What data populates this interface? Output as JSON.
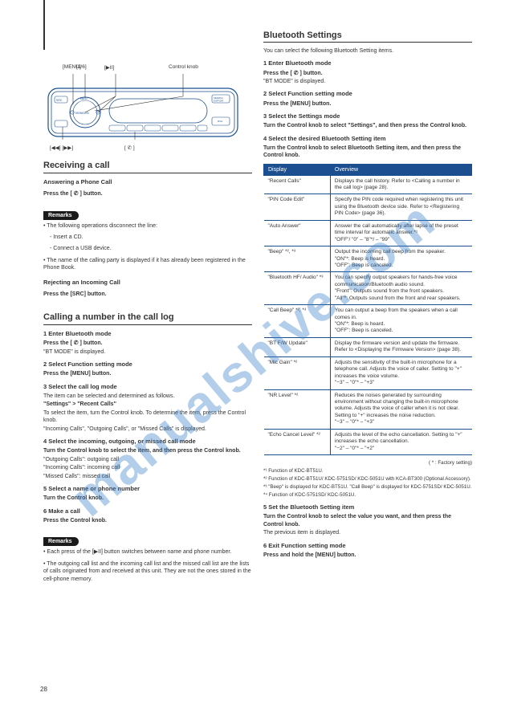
{
  "page_number": "28",
  "watermark_text": "manualshive.com",
  "callouts": {
    "c1": "[MENU]",
    "c2": "[1/6]",
    "c3": "[▶II]",
    "c4": "Control knob",
    "c5": "[◀◀] [▶▶]",
    "c6_a": "[ ",
    "c6_b": " ]",
    "phone_icon": "✆"
  },
  "radio": {
    "brand": "KENWOOD"
  },
  "left": {
    "section1_title": "Receiving a call",
    "section1_body": "Answering a Phone Call",
    "section1_press": "Press the [ ✆ ] button.",
    "section1_remarks_title": "Remarks",
    "section1_r1": "• The following operations disconnect the line:",
    "section1_r1a": "- Insert a CD.",
    "section1_r1b": "- Connect a USB device.",
    "section1_r2": "• The name of the calling party is displayed if it has already been registered in the Phone Book.",
    "section1_reject_title": "Rejecting an Incoming Call",
    "section1_reject_body": "Press the [SRC] button.",
    "section2_title": "Calling a number in the call log",
    "section2_s1": "1  Enter Bluetooth mode",
    "section2_s1_body": "Press the [ ✆ ] button.",
    "section2_s1_display": "\"BT MODE\" is displayed.",
    "section2_s2": "2  Select Function setting mode",
    "section2_s2_body": "Press the [MENU] button.",
    "section2_s3": "3  Select the call log mode",
    "section2_s3_body1": "The item can be selected and determined as follows.",
    "section2_s3_body2": "\"Settings\" > \"Recent Calls\"",
    "section2_s3_body3": "To select the item, turn the Control knob. To determine the item, press the Control knob.",
    "section2_s3_display": "\"Incoming Calls\", \"Outgoing Calls\", or \"Missed Calls\" is displayed.",
    "section2_s4": "4  Select the incoming, outgoing, or missed call mode",
    "section2_s4_body": "Turn the Control knob to select the item, and then press the Control knob.",
    "section2_s4_a": "\"Outgoing Calls\": outgoing call",
    "section2_s4_b": "\"Incoming Calls\": incoming call",
    "section2_s4_c": "\"Missed Calls\": missed call",
    "section2_s5": "5  Select a name or phone number",
    "section2_s5_body": "Turn the Control knob.",
    "section2_s6": "6  Make a call",
    "section2_s6_body": "Press the Control knob.",
    "section2_remarks_title": "Remarks",
    "section2_r1": "• Each press of the [▶II] button switches between name and phone number.",
    "section2_r2": "• The outgoing call list and the incoming call list and the missed call list are the lists of calls originated from and received at this unit. They are not the ones stored in the cell-phone memory."
  },
  "right": {
    "settings_title": "Bluetooth Settings",
    "settings_intro": "You can select the following Bluetooth Setting items.",
    "settings_s1": "1  Enter Bluetooth mode",
    "settings_s1_body": "Press the [ ✆ ] button.",
    "settings_s1_display": "\"BT MODE\" is displayed.",
    "settings_s2": "2  Select Function setting mode",
    "settings_s2_body": "Press the [MENU] button.",
    "settings_s3": "3  Select the Settings mode",
    "settings_s3_body": "Turn the Control knob to select \"Settings\", and then press the Control knob.",
    "settings_s4": "4  Select the desired Bluetooth Setting item",
    "settings_s4_body": "Turn the Control knob to select Bluetooth Setting item, and then press the Control knob.",
    "table": {
      "header_col1": "Display",
      "header_col2": "Overview",
      "rows": [
        {
          "display": "\"Recent Calls\"",
          "overview": "Displays the call history. Refer to <Calling a number in the call log> (page 28)."
        },
        {
          "display": "\"PIN Code Edit\"",
          "overview": "Specify the PIN code required when registering this unit using the Bluetooth device side. Refer to <Registering PIN Code> (page 36)."
        },
        {
          "display": "\"Auto Answer\"",
          "overview": "Answer the call automatically after lapse of the preset time interval for automatic answer.*¹\n\"OFF\"/ \"0\" – \"8\"*/ – \"99\""
        },
        {
          "display": "\"Beep\" *², *³",
          "overview": "Output the incoming call beep from the speaker.\n\"ON\"*: Beep is heard.\n\"OFF\": Beep is canceled."
        },
        {
          "display": "\"Bluetooth HF/ Audio\" *³",
          "overview": "You can specify output speakers for hands-free voice communication/Bluetooth audio sound.\n\"Front\": Outputs sound from the front speakers.\n\"All\"*: Outputs sound from the front and rear speakers."
        },
        {
          "display": "\"Call Beep\" *², *³",
          "overview": "You can output a beep from the speakers when a call comes in.\n\"ON\"*: Beep is heard.\n\"OFF\": Beep is canceled."
        },
        {
          "display": "\"BT F/W Update\"",
          "overview": "Display the firmware version and update the firmware. Refer to <Displaying the Firmware Version> (page 38)."
        },
        {
          "display": "\"Mic Gain\" *²",
          "overview": "Adjusts the sensitivity of the built-in microphone for a telephone call. Adjusts the voice of caller. Setting to \"+\" increases the voice volume.\n\"−3\" – \"0\"* – \"+3\""
        },
        {
          "display": "\"NR Level\" *²",
          "overview": "Reduces the noises generated by surrounding environment without changing the built-in microphone volume. Adjusts the voice of caller when it is not clear. Setting to \"+\" increases the noise reduction.\n\"−3\" – \"0\"* – \"+3\""
        },
        {
          "display": "\"Echo Cancel Level\" *²",
          "overview": "Adjusts the level of the echo cancellation. Setting to \"+\" increases the echo cancellation.\n\"−2\" – \"0\"* – \"+2\""
        }
      ]
    },
    "footnotes": {
      "fn_star": "( * : Factory setting)",
      "fn1": "*¹ Function of KDC-BT51U.",
      "fn2": "*² Function of KDC-BT51U/ KDC-5751SD/ KDC-5051U with KCA-BT300 (Optional Accessory).",
      "fn3": "*³ \"Beep\" is displayed for KDC-BT51U. \"Call Beep\" is displayed for KDC-5751SD/ KDC-5051U.",
      "fn4": "*⁴ Function of KDC-5751SD/ KDC-5051U."
    },
    "settings_s5": "5  Set the Bluetooth Setting item",
    "settings_s5_body": "Turn the Control knob to select the value you want, and then press the Control knob.",
    "settings_s5_body2": "The previous item is displayed.",
    "settings_s6": "6  Exit Function setting mode",
    "settings_s6_body": "Press and hold the [MENU] button."
  }
}
